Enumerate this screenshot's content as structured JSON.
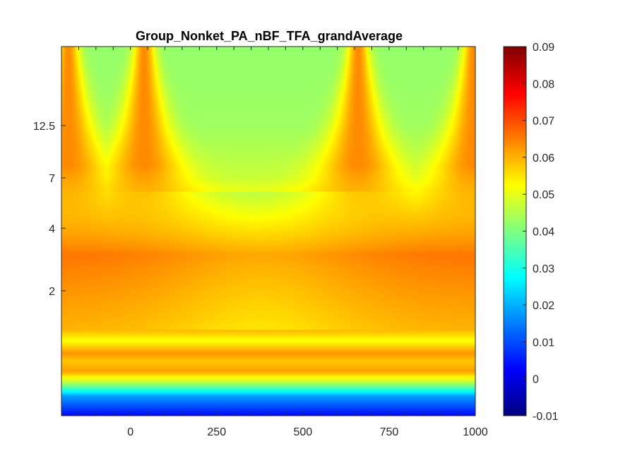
{
  "chart_data": {
    "type": "heatmap",
    "title": "Group_Nonket_PA_nBF_TFA_grandAverage",
    "xlabel": "",
    "ylabel": "",
    "x_tick_labels": [
      "0",
      "250",
      "500",
      "750",
      "1000"
    ],
    "x_ticks": [
      0,
      250,
      500,
      750,
      1000
    ],
    "xlim": [
      -200,
      1000
    ],
    "y_tick_labels": [
      "12.5",
      "7",
      "4",
      "2"
    ],
    "y_ticks": [
      12.5,
      7,
      4,
      2
    ],
    "ylim": [
      0.5,
      30
    ],
    "y_scale": "log",
    "colormap": "jet",
    "colorbar": {
      "tick_labels": [
        "0.09",
        "0.08",
        "0.07",
        "0.06",
        "0.05",
        "0.04",
        "0.03",
        "0.02",
        "0.01",
        "0",
        "-0.01"
      ],
      "ticks": [
        0.09,
        0.08,
        0.07,
        0.06,
        0.05,
        0.04,
        0.03,
        0.02,
        0.01,
        0,
        -0.01
      ],
      "clim": [
        -0.01,
        0.09
      ],
      "position": "right"
    },
    "notes_values": {
      "low_freq_band_min": 0.003,
      "edge_dip_times": [
        -180,
        40,
        660,
        995
      ],
      "high_freq_level": 0.042,
      "mid_band_level": 0.058,
      "peak_level": 0.066
    }
  }
}
